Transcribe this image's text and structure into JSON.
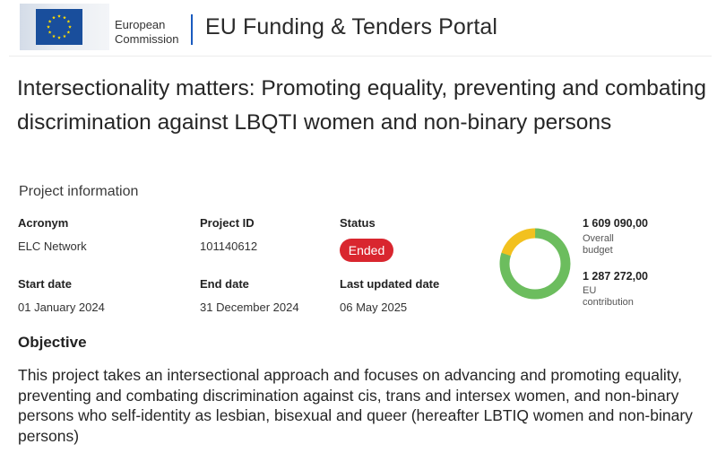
{
  "header": {
    "logo_line1": "European",
    "logo_line2": "Commission",
    "portal_title": "EU Funding & Tenders Portal"
  },
  "project": {
    "title": "Intersectionality matters: Promoting equality, preventing and combating discrimination against LBQTI women and non-binary persons",
    "section_label": "Project information",
    "fields": {
      "acronym_label": "Acronym",
      "acronym_value": "ELC Network",
      "project_id_label": "Project ID",
      "project_id_value": "101140612",
      "status_label": "Status",
      "status_value": "Ended",
      "start_label": "Start date",
      "start_value": "01 January 2024",
      "end_label": "End date",
      "end_value": "31 December 2024",
      "updated_label": "Last updated date",
      "updated_value": "06 May 2025"
    },
    "budget": {
      "overall_value": "1 609 090,00",
      "overall_caption_line1": "Overall",
      "overall_caption_line2": "budget",
      "eu_value": "1 287 272,00",
      "eu_caption_line1": "EU",
      "eu_caption_line2": "contribution",
      "eu_share": 0.8,
      "colors": {
        "eu": "#6cbd5e",
        "other": "#f2c11f"
      }
    },
    "objective_heading": "Objective",
    "objective_text": "This project takes an intersectional approach and focuses on advancing and promoting equality, preventing and combating discrimination against cis, trans and intersex women, and non-binary persons who self-identity as lesbian, bisexual and queer (hereafter LBTIQ women and non-binary persons)"
  },
  "colors": {
    "status_badge": "#d9262f",
    "eu_blue": "#194e9c",
    "eu_yellow": "#ffdd00",
    "separator": "#1a5bbf"
  }
}
